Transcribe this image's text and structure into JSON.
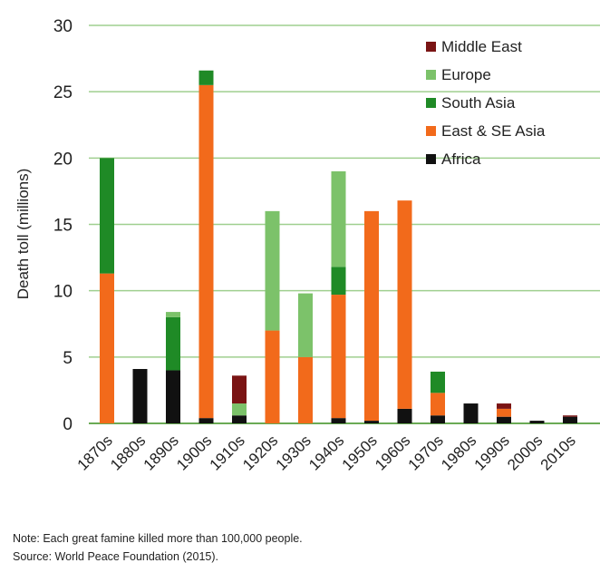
{
  "chart_data": {
    "type": "bar",
    "stacked": true,
    "ylabel": "Death toll (millions)",
    "ylim": [
      0,
      30
    ],
    "yticks": [
      0,
      5,
      10,
      15,
      20,
      25,
      30
    ],
    "grid": true,
    "legend_position": "top-right",
    "categories": [
      "1870s",
      "1880s",
      "1890s",
      "1900s",
      "1910s",
      "1920s",
      "1930s",
      "1940s",
      "1950s",
      "1960s",
      "1970s",
      "1980s",
      "1990s",
      "2000s",
      "2010s"
    ],
    "series": [
      {
        "name": "Africa",
        "color": "#111111",
        "values": [
          0,
          4.1,
          4.0,
          0.4,
          0.6,
          0,
          0,
          0.4,
          0.2,
          1.1,
          0.6,
          1.5,
          0.5,
          0.2,
          0.5
        ]
      },
      {
        "name": "East & SE Asia",
        "color": "#f26a1b",
        "values": [
          11.3,
          0,
          0,
          25.1,
          0,
          7.0,
          5.0,
          9.3,
          15.8,
          15.7,
          1.7,
          0,
          0.6,
          0,
          0
        ]
      },
      {
        "name": "South Asia",
        "color": "#1f8a26",
        "values": [
          8.7,
          0,
          4.0,
          1.1,
          0,
          0,
          0,
          2.1,
          0,
          0,
          1.6,
          0,
          0,
          0,
          0
        ]
      },
      {
        "name": "Europe",
        "color": "#7cc26a",
        "values": [
          0,
          0,
          0.4,
          0,
          0.9,
          9.0,
          4.8,
          7.2,
          0,
          0,
          0,
          0,
          0,
          0,
          0
        ]
      },
      {
        "name": "Middle East",
        "color": "#7a1414",
        "values": [
          0,
          0,
          0,
          0,
          2.1,
          0,
          0,
          0,
          0,
          0,
          0,
          0,
          0.4,
          0,
          0.1
        ]
      }
    ],
    "legend_order": [
      "Middle East",
      "Europe",
      "South Asia",
      "East & SE Asia",
      "Africa"
    ]
  },
  "notes": {
    "note": "Note: Each great famine killed more than 100,000 people.",
    "source": "Source: World Peace Foundation (2015)."
  }
}
